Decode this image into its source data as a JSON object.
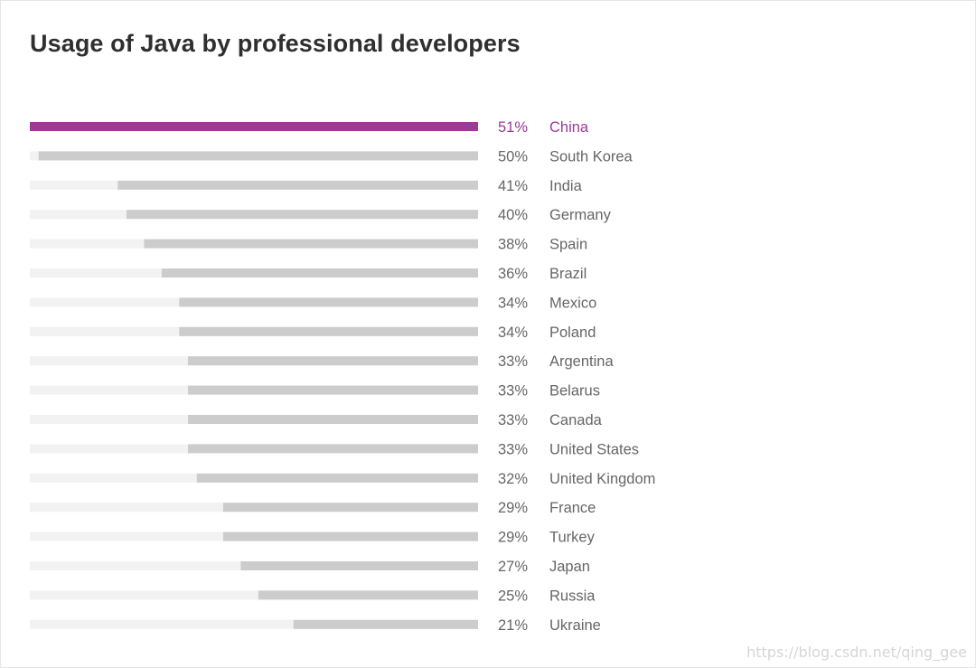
{
  "chart_data": {
    "type": "bar",
    "orientation": "horizontal",
    "title": "Usage of Java by professional developers",
    "xlim": [
      0,
      100
    ],
    "value_suffix": "%",
    "categories": [
      "China",
      "South Korea",
      "India",
      "Germany",
      "Spain",
      "Brazil",
      "Mexico",
      "Poland",
      "Argentina",
      "Belarus",
      "Canada",
      "United States",
      "United Kingdom",
      "France",
      "Turkey",
      "Japan",
      "Russia",
      "Ukraine"
    ],
    "values": [
      51,
      50,
      41,
      40,
      38,
      36,
      34,
      34,
      33,
      33,
      33,
      33,
      32,
      29,
      29,
      27,
      25,
      21
    ],
    "labels": [
      "51%",
      "50%",
      "41%",
      "40%",
      "38%",
      "36%",
      "34%",
      "34%",
      "33%",
      "33%",
      "33%",
      "33%",
      "32%",
      "29%",
      "29%",
      "27%",
      "25%",
      "21%"
    ],
    "highlight": "China",
    "colors": {
      "highlight": "#9c3a97",
      "bar": "#cccccc",
      "track": "#f2f2f2",
      "label": "#666666"
    }
  },
  "watermark": "https://blog.csdn.net/qing_gee"
}
